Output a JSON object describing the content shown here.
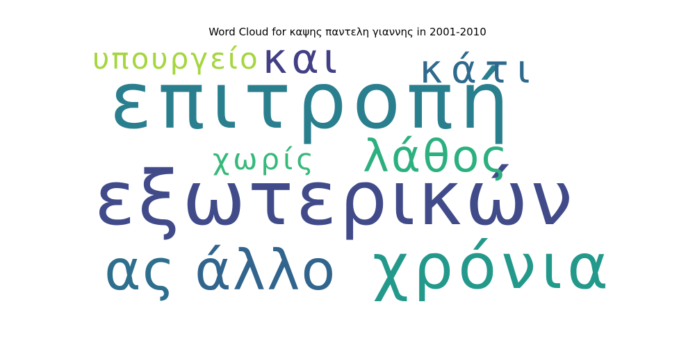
{
  "title": "Word Cloud for καψης παντελη γιαννης in 2001-2010",
  "words": [
    {
      "text": "επιτροπή",
      "color": "#2a7f8e"
    },
    {
      "text": "εξωτερικών",
      "color": "#414b8a"
    },
    {
      "text": "χρόνια",
      "color": "#23998b"
    },
    {
      "text": "ας",
      "color": "#2e6f8e"
    },
    {
      "text": "άλλο",
      "color": "#31658e"
    },
    {
      "text": "λάθος",
      "color": "#2cb07f"
    },
    {
      "text": "κάτι",
      "color": "#2e6a8e"
    },
    {
      "text": "και",
      "color": "#423f85"
    },
    {
      "text": "υπουργείο",
      "color": "#a5d63f"
    },
    {
      "text": "χωρίς",
      "color": "#37b97a"
    }
  ]
}
